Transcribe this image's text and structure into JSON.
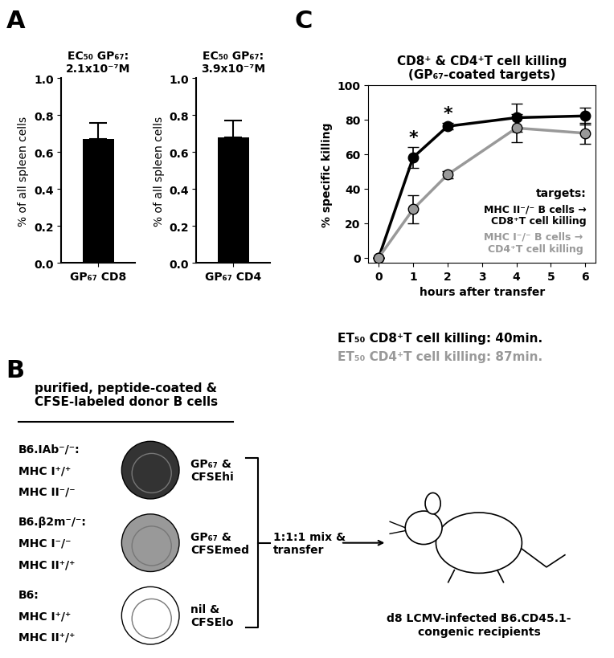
{
  "panel_labels": [
    "A",
    "B",
    "C"
  ],
  "chart_data": [
    {
      "type": "bar",
      "title": "EC₅₀ GP₆₇:\n2.1x10⁻⁷M",
      "categories": [
        "GP₆₇ CD8"
      ],
      "values": [
        0.67
      ],
      "errors": [
        0.09
      ],
      "color": "#000000",
      "ylabel": "% of all spleen cells",
      "ylim": [
        0.0,
        1.0
      ],
      "yticks": [
        0.0,
        0.2,
        0.4,
        0.6,
        0.8,
        1.0
      ]
    },
    {
      "type": "bar",
      "title": "EC₅₀ GP₆₇:\n3.9x10⁻⁷M",
      "categories": [
        "GP₆₇ CD4"
      ],
      "values": [
        0.68
      ],
      "errors": [
        0.09
      ],
      "color": "#000000",
      "ylabel": "% of all spleen cells",
      "ylim": [
        0.0,
        1.0
      ],
      "yticks": [
        0.0,
        0.2,
        0.4,
        0.6,
        0.8,
        1.0
      ]
    },
    {
      "type": "line",
      "title": "CD8⁺ & CD4⁺T cell killing\n(GP₆₇-coated targets)",
      "x": [
        0,
        1,
        2,
        4,
        6
      ],
      "series": [
        {
          "name": "MHC II⁻/⁻ B cells →\nCD8⁺T cell killing",
          "color": "#000000",
          "marker": "o",
          "line_style": "solid",
          "values": [
            0,
            58,
            76,
            81,
            82
          ],
          "errors": [
            0,
            6,
            2,
            8,
            5
          ]
        },
        {
          "name": "MHC I⁻/⁻ B cells →\nCD4⁺T cell killing",
          "color": "#999999",
          "marker": "o",
          "line_style": "solid",
          "values": [
            0,
            28,
            48,
            75,
            72
          ],
          "errors": [
            0,
            8,
            2,
            8,
            6
          ]
        }
      ],
      "legend": "lower right",
      "legend_title": "targets:",
      "xlabel": "hours after transfer",
      "ylabel": "% specific killing",
      "xlim": [
        -0.3,
        6.3
      ],
      "xticks": [
        0,
        1,
        2,
        3,
        4,
        5,
        6
      ],
      "ylim": [
        -3,
        100
      ],
      "yticks": [
        0,
        20,
        40,
        60,
        80,
        100
      ],
      "annotations": [
        {
          "text": "*",
          "x": 1,
          "y": 65
        },
        {
          "text": "*",
          "x": 2,
          "y": 79
        }
      ],
      "footnotes": [
        {
          "text": "ET₅₀ CD8⁺T cell killing: 40min.",
          "color": "#000000"
        },
        {
          "text": "ET₅₀ CD4⁺T cell killing: 87min.",
          "color": "#999999"
        }
      ]
    }
  ],
  "diagram": {
    "title": "purified, peptide-coated &\nCFSE-labeled donor B cells",
    "rows": [
      {
        "strain": "B6.IAb⁻/⁻:",
        "mhc": [
          "MHC I⁺/⁺",
          "MHC II⁻/⁻"
        ],
        "label": "GP₆₇ &\nCFSEhi",
        "color": "#333333"
      },
      {
        "strain": "B6.β2m⁻/⁻:",
        "mhc": [
          "MHC I⁻/⁻",
          "MHC II⁺/⁺"
        ],
        "label": "GP₆₇ &\nCFSEmed",
        "color": "#999999"
      },
      {
        "strain": "B6:",
        "mhc": [
          "MHC I⁺/⁺",
          "MHC II⁺/⁺"
        ],
        "label": "nil &\nCFSElo",
        "color": "#ffffff"
      }
    ],
    "mix": "1:1:1 mix &\ntransfer",
    "recipient": "d8 LCMV-infected B6.CD45.1-\ncongenic recipients"
  }
}
